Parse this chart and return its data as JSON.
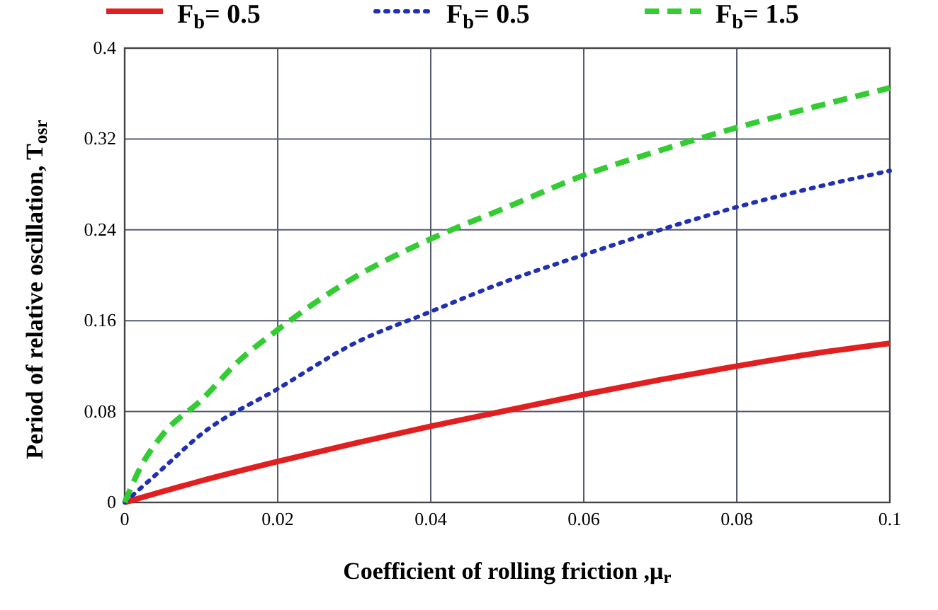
{
  "chart_data": {
    "type": "line",
    "xlabel": "Coefficient of rolling friction ,μ$_{r}$",
    "ylabel": "Period of relative oscillation, T$_{osr}$",
    "xlim": [
      0,
      0.1
    ],
    "ylim": [
      0,
      0.4
    ],
    "xticks": [
      0,
      0.02,
      0.04,
      0.06,
      0.08,
      0.1
    ],
    "yticks": [
      0,
      0.08,
      0.16,
      0.24,
      0.32,
      0.4
    ],
    "grid": true,
    "legend": "top",
    "marker": "none",
    "series": [
      {
        "name": "F$_{b}$= 0.5",
        "color": "#e02020",
        "line_style": "solid",
        "x": [
          0,
          0.01,
          0.02,
          0.03,
          0.04,
          0.05,
          0.06,
          0.07,
          0.08,
          0.09,
          0.1
        ],
        "values": [
          0,
          0.019,
          0.036,
          0.052,
          0.067,
          0.081,
          0.095,
          0.108,
          0.12,
          0.131,
          0.14
        ]
      },
      {
        "name": "F$_{b}$= 0.5",
        "color": "#2030b0",
        "line_style": "dotted",
        "x": [
          0,
          0.005,
          0.01,
          0.02,
          0.03,
          0.04,
          0.05,
          0.06,
          0.07,
          0.08,
          0.09,
          0.1
        ],
        "values": [
          0,
          0.03,
          0.06,
          0.1,
          0.14,
          0.168,
          0.195,
          0.218,
          0.24,
          0.26,
          0.277,
          0.292
        ]
      },
      {
        "name": "F$_{b}$= 1.5",
        "color": "#33cc33",
        "line_style": "dashed",
        "x": [
          0,
          0.002,
          0.005,
          0.01,
          0.015,
          0.02,
          0.03,
          0.04,
          0.05,
          0.06,
          0.07,
          0.08,
          0.09,
          0.1
        ],
        "values": [
          0,
          0.03,
          0.06,
          0.09,
          0.125,
          0.152,
          0.198,
          0.232,
          0.26,
          0.288,
          0.31,
          0.33,
          0.348,
          0.365
        ]
      }
    ]
  }
}
